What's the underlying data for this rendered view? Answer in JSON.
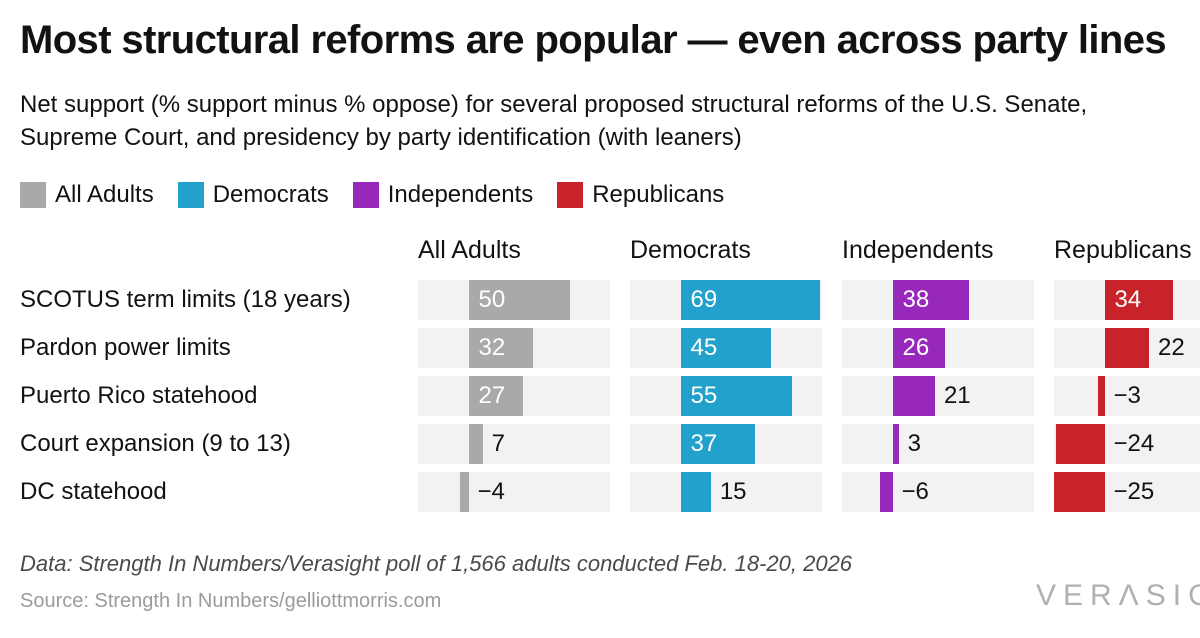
{
  "title": "Most structural reforms are popular — even across party lines",
  "subtitle": "Net support (% support minus % oppose) for several proposed structural reforms of the U.S. Senate, Supreme Court, and presidency by party identification (with leaners)",
  "colors": {
    "all_adults": "#a9a9a9",
    "democrats": "#21a1cb",
    "independents": "#9728bb",
    "republicans": "#c8232b",
    "track": "#f2f2f2",
    "text": "#121212",
    "value_inside": "#ffffff",
    "footer_data": "#4a4a4a",
    "footer_source": "#9b9b9b",
    "logo": "#b0b0b0"
  },
  "legend": [
    {
      "label": "All Adults",
      "color": "#a9a9a9"
    },
    {
      "label": "Democrats",
      "color": "#21a1cb"
    },
    {
      "label": "Independents",
      "color": "#9728bb"
    },
    {
      "label": "Republicans",
      "color": "#c8232b"
    }
  ],
  "chart_data": {
    "type": "bar",
    "orientation": "horizontal",
    "title": "Most structural reforms are popular — even across party lines",
    "categories": [
      "SCOTUS term limits (18 years)",
      "Pardon power limits",
      "Puerto Rico statehood",
      "Court expansion (9 to 13)",
      "DC statehood"
    ],
    "series": [
      {
        "name": "All Adults",
        "color": "#a9a9a9",
        "values": [
          50,
          32,
          27,
          7,
          -4
        ]
      },
      {
        "name": "Democrats",
        "color": "#21a1cb",
        "values": [
          69,
          45,
          55,
          37,
          15
        ]
      },
      {
        "name": "Independents",
        "color": "#9728bb",
        "values": [
          38,
          26,
          21,
          3,
          -6
        ]
      },
      {
        "name": "Republicans",
        "color": "#c8232b",
        "values": [
          34,
          22,
          -3,
          -24,
          -25
        ]
      }
    ],
    "xlim": [
      -25,
      70
    ],
    "grid": false,
    "legend_position": "top",
    "value_labels": true
  },
  "footer": {
    "data_note": "Data: Strength In Numbers/Verasight poll of 1,566 adults conducted Feb. 18-20, 2026",
    "source": "Source: Strength In Numbers/gelliottmorris.com",
    "logo": "VERASIGHT"
  }
}
